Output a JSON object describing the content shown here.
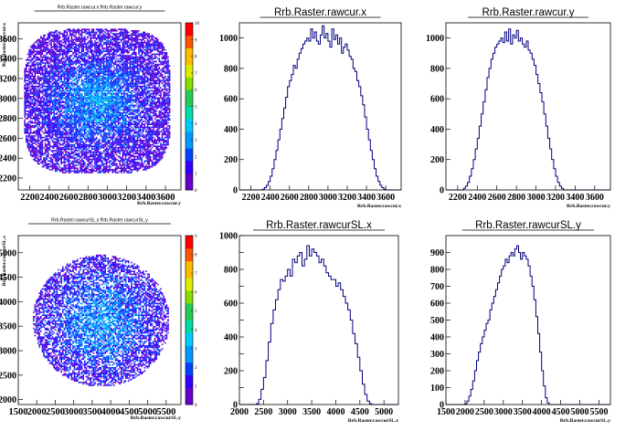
{
  "canvas_title": "",
  "colors": {
    "hist_line": "#000080",
    "frame": "#000000",
    "palette": [
      "#6600cc",
      "#3300ff",
      "#0044ff",
      "#0099ff",
      "#00ccff",
      "#00ddaa",
      "#22cc55",
      "#88dd00",
      "#ddee00",
      "#ffbb00",
      "#ff5500",
      "#ff0000"
    ]
  },
  "chart_data": [
    {
      "id": "pad1",
      "type": "heatmap",
      "title": "Rrb.Raster.rawcur.x:Rrb.Raster.rawcur.y",
      "xlabel": "Rrb.Raster.rawcur.y",
      "ylabel": "Rrb.Raster.rawcur.x",
      "xlim": [
        2080,
        3760
      ],
      "ylim": [
        2080,
        3760
      ],
      "xticks": [
        2200,
        2400,
        2600,
        2800,
        3000,
        3200,
        3400,
        3600
      ],
      "xtick_labels": [
        "2200",
        "2400",
        "2600",
        "2800",
        "3000",
        "3200",
        "3400",
        "3600"
      ],
      "yticks": [
        2200,
        2400,
        2600,
        2800,
        3000,
        3200,
        3400,
        3600
      ],
      "ytick_labels": [
        "2200",
        "2400",
        "2600",
        "2800",
        "3000",
        "3200",
        "3400",
        "3600"
      ],
      "zlim": [
        0,
        10
      ],
      "zticks": [
        0,
        1,
        2,
        3,
        4,
        5,
        6,
        7,
        8,
        9,
        10
      ],
      "blob": {
        "cx": 2900,
        "cy": 2970,
        "rx": 760,
        "ry": 730,
        "sx": 330,
        "sy": 300,
        "density": 1.2,
        "seed": 11,
        "shape": "rounded-square"
      }
    },
    {
      "id": "pad2",
      "type": "histogram",
      "title": "Rrb.Raster.rawcur.x",
      "xlabel": "Rrb.Raster.rawcur.x",
      "ylabel": "",
      "xlim": [
        2080,
        3760
      ],
      "ylim": [
        0,
        1100
      ],
      "xticks": [
        2200,
        2400,
        2600,
        2800,
        3000,
        3200,
        3400,
        3600
      ],
      "xtick_labels": [
        "2200",
        "2400",
        "2600",
        "2800",
        "3000",
        "3200",
        "3400",
        "3600"
      ],
      "yticks": [
        0,
        200,
        400,
        600,
        800,
        1000
      ],
      "ytick_labels": [
        "0",
        "200",
        "400",
        "600",
        "800",
        "1000"
      ],
      "bin_edges_start": 2080,
      "bin_width": 20,
      "counts": [
        0,
        0,
        0,
        0,
        0,
        0,
        0,
        0,
        0,
        0,
        0,
        0,
        5,
        15,
        30,
        55,
        90,
        140,
        200,
        260,
        330,
        400,
        470,
        540,
        610,
        680,
        720,
        760,
        820,
        800,
        860,
        900,
        930,
        960,
        980,
        1000,
        980,
        1060,
        1000,
        1040,
        980,
        960,
        1020,
        1080,
        1000,
        1030,
        980,
        940,
        1060,
        990,
        1020,
        960,
        1000,
        900,
        940,
        960,
        920,
        880,
        860,
        800,
        780,
        720,
        680,
        620,
        560,
        480,
        400,
        330,
        260,
        200,
        140,
        90,
        55,
        30,
        15,
        5,
        0,
        0,
        0,
        0,
        0,
        0,
        0,
        0
      ]
    },
    {
      "id": "pad3",
      "type": "histogram",
      "title": "Rrb.Raster.rawcur.y",
      "xlabel": "Rrb.Raster.rawcur.y",
      "ylabel": "",
      "xlim": [
        2080,
        3760
      ],
      "ylim": [
        0,
        1100
      ],
      "xticks": [
        2200,
        2400,
        2600,
        2800,
        3000,
        3200,
        3400,
        3600
      ],
      "xtick_labels": [
        "2200",
        "2400",
        "2600",
        "2800",
        "3000",
        "3200",
        "3400",
        "3600"
      ],
      "yticks": [
        0,
        200,
        400,
        600,
        800,
        1000
      ],
      "ytick_labels": [
        "0",
        "200",
        "400",
        "600",
        "800",
        "1000"
      ],
      "bin_edges_start": 2080,
      "bin_width": 20,
      "counts": [
        0,
        0,
        0,
        0,
        0,
        0,
        0,
        0,
        0,
        10,
        25,
        50,
        90,
        140,
        200,
        270,
        340,
        420,
        500,
        580,
        660,
        740,
        800,
        860,
        900,
        940,
        960,
        980,
        1000,
        970,
        1040,
        980,
        1060,
        960,
        1020,
        1000,
        1050,
        980,
        1000,
        960,
        940,
        980,
        920,
        900,
        860,
        820,
        760,
        700,
        640,
        580,
        500,
        420,
        340,
        270,
        200,
        140,
        90,
        50,
        25,
        10,
        0,
        0,
        0,
        0,
        0,
        0,
        0,
        0,
        0,
        0,
        0,
        0,
        0,
        0,
        0,
        0,
        0,
        0,
        0,
        0,
        0,
        0,
        0,
        0
      ]
    },
    {
      "id": "pad4",
      "type": "heatmap",
      "title": "Rrb.Raster.rawcurSL.x:Rrb.Raster.rawcurSL.y",
      "xlabel": "Rrb.Raster.rawcurSL.y",
      "ylabel": "Rrb.Raster.rawcurSL.x",
      "xlim": [
        1500,
        5900
      ],
      "ylim": [
        1900,
        5350
      ],
      "xticks": [
        1500,
        2000,
        2500,
        3000,
        3500,
        4000,
        4500,
        5000,
        5500
      ],
      "xtick_labels": [
        "1500",
        "2000",
        "2500",
        "3000",
        "3500",
        "4000",
        "4500",
        "5000",
        "5500"
      ],
      "yticks": [
        2000,
        2500,
        3000,
        3500,
        4000,
        4500,
        5000
      ],
      "ytick_labels": [
        "2000",
        "2500",
        "3000",
        "3500",
        "4000",
        "4500",
        "5000"
      ],
      "zlim": [
        0,
        9
      ],
      "zticks": [
        0,
        1,
        2,
        3,
        4,
        5,
        6,
        7,
        8,
        9
      ],
      "blob": {
        "cx": 3750,
        "cy": 3600,
        "rx": 1850,
        "ry": 1350,
        "sx": 900,
        "sy": 700,
        "density": 1.0,
        "seed": 29,
        "shape": "ellipse"
      }
    },
    {
      "id": "pad5",
      "type": "histogram",
      "title": "Rrb.Raster.rawcurSL.x",
      "xlabel": "Rrb.Raster.rawcurSL.x",
      "ylabel": "",
      "xlim": [
        2000,
        5300
      ],
      "ylim": [
        0,
        1000
      ],
      "xticks": [
        2000,
        2500,
        3000,
        3500,
        4000,
        4500,
        5000
      ],
      "xtick_labels": [
        "2000",
        "2500",
        "3000",
        "3500",
        "4000",
        "4500",
        "5000"
      ],
      "yticks": [
        0,
        100,
        200,
        300,
        400,
        500,
        600,
        700,
        800,
        900,
        1000
      ],
      "ytick_labels": [
        "0",
        "",
        "200",
        "",
        "400",
        "",
        "600",
        "",
        "800",
        "",
        "1000"
      ],
      "bin_edges_start": 2000,
      "bin_width": 50,
      "counts": [
        0,
        0,
        0,
        0,
        0,
        0,
        0,
        5,
        30,
        90,
        160,
        260,
        370,
        480,
        560,
        620,
        680,
        740,
        730,
        760,
        800,
        760,
        860,
        840,
        880,
        900,
        820,
        860,
        940,
        880,
        920,
        900,
        880,
        840,
        860,
        820,
        780,
        760,
        740,
        740,
        700,
        720,
        680,
        640,
        600,
        560,
        500,
        420,
        360,
        280,
        200,
        120,
        60,
        20,
        5,
        0,
        0,
        0,
        0,
        0,
        0,
        0,
        0,
        0,
        0,
        0
      ]
    },
    {
      "id": "pad6",
      "type": "histogram",
      "title": "Rrb.Raster.rawcurSL.y",
      "xlabel": "Rrb.Raster.rawcurSL.y",
      "ylabel": "",
      "xlim": [
        1500,
        5800
      ],
      "ylim": [
        0,
        1000
      ],
      "xticks": [
        1500,
        2000,
        2500,
        3000,
        3500,
        4000,
        4500,
        5000,
        5500
      ],
      "xtick_labels": [
        "1500",
        "2000",
        "2500",
        "3000",
        "3500",
        "4000",
        "4500",
        "5000",
        "5500"
      ],
      "yticks": [
        0,
        100,
        200,
        300,
        400,
        500,
        600,
        700,
        800,
        900
      ],
      "ytick_labels": [
        "0",
        "100",
        "200",
        "300",
        "400",
        "500",
        "600",
        "700",
        "800",
        "900"
      ],
      "bin_edges_start": 1500,
      "bin_width": 50,
      "counts": [
        0,
        0,
        0,
        0,
        0,
        0,
        0,
        0,
        0,
        0,
        5,
        20,
        50,
        90,
        140,
        200,
        260,
        310,
        360,
        400,
        440,
        480,
        500,
        560,
        600,
        640,
        680,
        720,
        760,
        800,
        820,
        860,
        840,
        880,
        900,
        880,
        920,
        940,
        900,
        860,
        900,
        880,
        860,
        820,
        760,
        700,
        620,
        520,
        420,
        310,
        200,
        110,
        40,
        10,
        0,
        0,
        0,
        0,
        0,
        0,
        0,
        0,
        0,
        0,
        0,
        0,
        0,
        0,
        0,
        0,
        0,
        0,
        0,
        0,
        0,
        0,
        0,
        0,
        0,
        0,
        0,
        0,
        0,
        0,
        0,
        0
      ]
    }
  ]
}
